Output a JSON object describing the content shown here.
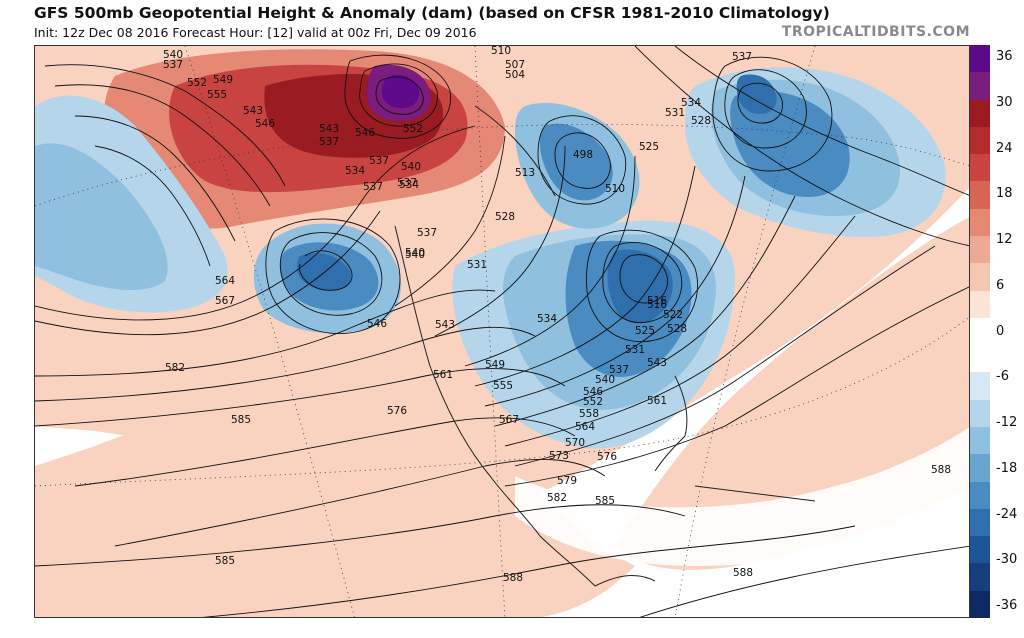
{
  "header": {
    "title": "GFS 500mb Geopotential Height & Anomaly (dam) (based on CFSR 1981-2010 Climatology)",
    "subtitle": "Init: 12z Dec 08 2016   Forecast Hour: [12]   valid at 00z Fri, Dec 09 2016",
    "brand": "TROPICALTIDBITS.COM"
  },
  "colorbar": {
    "ticks": [
      "36",
      "30",
      "24",
      "18",
      "12",
      "6",
      "0",
      "-6",
      "-12",
      "-18",
      "-24",
      "-30",
      "-36"
    ],
    "colors": [
      "#5c0a8a",
      "#7a1d7f",
      "#9b1b22",
      "#b52a2a",
      "#c94440",
      "#d86454",
      "#e58874",
      "#eea893",
      "#f5c7b3",
      "#fbe3d6",
      "#ffffff",
      "#ffffff",
      "#d6e8f3",
      "#b5d6ea",
      "#8fc0df",
      "#68a6d1",
      "#4a8cc2",
      "#2f6fae",
      "#1e5597",
      "#163d7c",
      "#0d2863"
    ]
  },
  "map": {
    "contour_labels": [
      "540",
      "537",
      "552",
      "549",
      "555",
      "543",
      "546",
      "543",
      "537",
      "546",
      "552",
      "540",
      "537",
      "534",
      "537",
      "537",
      "534",
      "540",
      "528",
      "531",
      "537",
      "540",
      "543",
      "546",
      "564",
      "567",
      "582",
      "585",
      "585",
      "561",
      "549",
      "555",
      "567",
      "576",
      "570",
      "573",
      "576",
      "579",
      "582",
      "585",
      "588",
      "588",
      "588",
      "537",
      "534",
      "531",
      "528",
      "525",
      "507",
      "504",
      "510",
      "498",
      "513",
      "510",
      "516",
      "522",
      "525",
      "528",
      "531",
      "534",
      "537",
      "540",
      "543",
      "546",
      "552",
      "558",
      "561",
      "564",
      "516"
    ]
  }
}
